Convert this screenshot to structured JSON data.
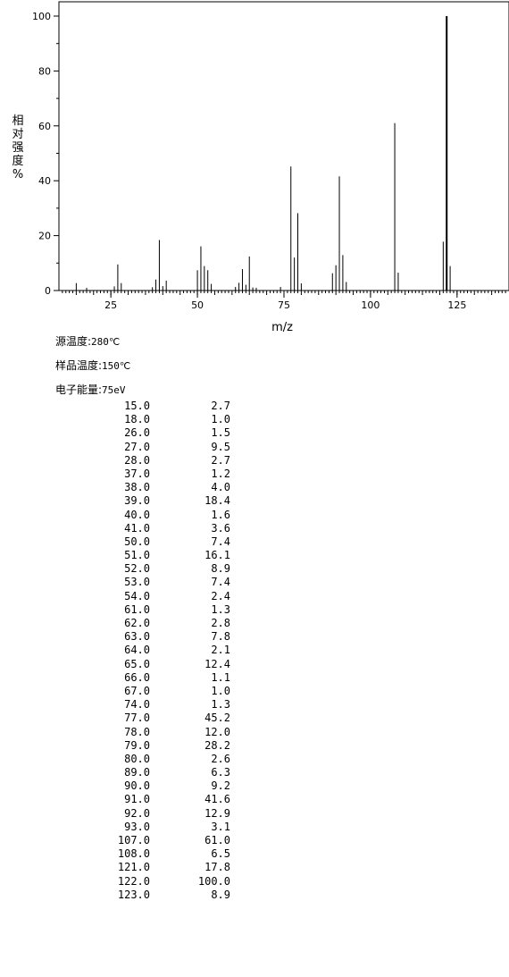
{
  "chart_data": {
    "type": "bar",
    "xlabel": "m/z",
    "ylabel": "相对强度%",
    "xlim": [
      10,
      140
    ],
    "ylim": [
      0,
      100
    ],
    "xticks": [
      25,
      50,
      75,
      100,
      125
    ],
    "yticks": [
      0,
      20,
      40,
      60,
      80,
      100
    ],
    "grid": false,
    "series": [
      {
        "x": [
          15,
          18,
          26,
          27,
          28,
          37,
          38,
          39,
          40,
          41,
          50,
          51,
          52,
          53,
          54,
          61,
          62,
          63,
          64,
          65,
          66,
          67,
          74,
          77,
          78,
          79,
          80,
          89,
          90,
          91,
          92,
          93,
          107,
          108,
          121,
          122,
          123
        ],
        "values": [
          2.7,
          1.0,
          1.5,
          9.5,
          2.7,
          1.2,
          4.0,
          18.4,
          1.6,
          3.6,
          7.4,
          16.1,
          8.9,
          7.4,
          2.4,
          1.3,
          2.8,
          7.8,
          2.1,
          12.4,
          1.1,
          1.0,
          1.3,
          45.2,
          12.0,
          28.2,
          2.6,
          6.3,
          9.2,
          41.6,
          12.9,
          3.1,
          61.0,
          6.5,
          17.8,
          100.0,
          8.9
        ]
      }
    ]
  },
  "conditions": [
    {
      "label": "源温度:",
      "value": "280℃"
    },
    {
      "label": "样品温度:",
      "value": "150℃"
    },
    {
      "label": "电子能量:",
      "value": "75eV"
    }
  ],
  "peaks": [
    {
      "mz": "15.0",
      "ab": "2.7"
    },
    {
      "mz": "18.0",
      "ab": "1.0"
    },
    {
      "mz": "26.0",
      "ab": "1.5"
    },
    {
      "mz": "27.0",
      "ab": "9.5"
    },
    {
      "mz": "28.0",
      "ab": "2.7"
    },
    {
      "mz": "37.0",
      "ab": "1.2"
    },
    {
      "mz": "38.0",
      "ab": "4.0"
    },
    {
      "mz": "39.0",
      "ab": "18.4"
    },
    {
      "mz": "40.0",
      "ab": "1.6"
    },
    {
      "mz": "41.0",
      "ab": "3.6"
    },
    {
      "mz": "50.0",
      "ab": "7.4"
    },
    {
      "mz": "51.0",
      "ab": "16.1"
    },
    {
      "mz": "52.0",
      "ab": "8.9"
    },
    {
      "mz": "53.0",
      "ab": "7.4"
    },
    {
      "mz": "54.0",
      "ab": "2.4"
    },
    {
      "mz": "61.0",
      "ab": "1.3"
    },
    {
      "mz": "62.0",
      "ab": "2.8"
    },
    {
      "mz": "63.0",
      "ab": "7.8"
    },
    {
      "mz": "64.0",
      "ab": "2.1"
    },
    {
      "mz": "65.0",
      "ab": "12.4"
    },
    {
      "mz": "66.0",
      "ab": "1.1"
    },
    {
      "mz": "67.0",
      "ab": "1.0"
    },
    {
      "mz": "74.0",
      "ab": "1.3"
    },
    {
      "mz": "77.0",
      "ab": "45.2"
    },
    {
      "mz": "78.0",
      "ab": "12.0"
    },
    {
      "mz": "79.0",
      "ab": "28.2"
    },
    {
      "mz": "80.0",
      "ab": "2.6"
    },
    {
      "mz": "89.0",
      "ab": "6.3"
    },
    {
      "mz": "90.0",
      "ab": "9.2"
    },
    {
      "mz": "91.0",
      "ab": "41.6"
    },
    {
      "mz": "92.0",
      "ab": "12.9"
    },
    {
      "mz": "93.0",
      "ab": "3.1"
    },
    {
      "mz": "107.0",
      "ab": "61.0"
    },
    {
      "mz": "108.0",
      "ab": "6.5"
    },
    {
      "mz": "121.0",
      "ab": "17.8"
    },
    {
      "mz": "122.0",
      "ab": "100.0"
    },
    {
      "mz": "123.0",
      "ab": "8.9"
    }
  ]
}
